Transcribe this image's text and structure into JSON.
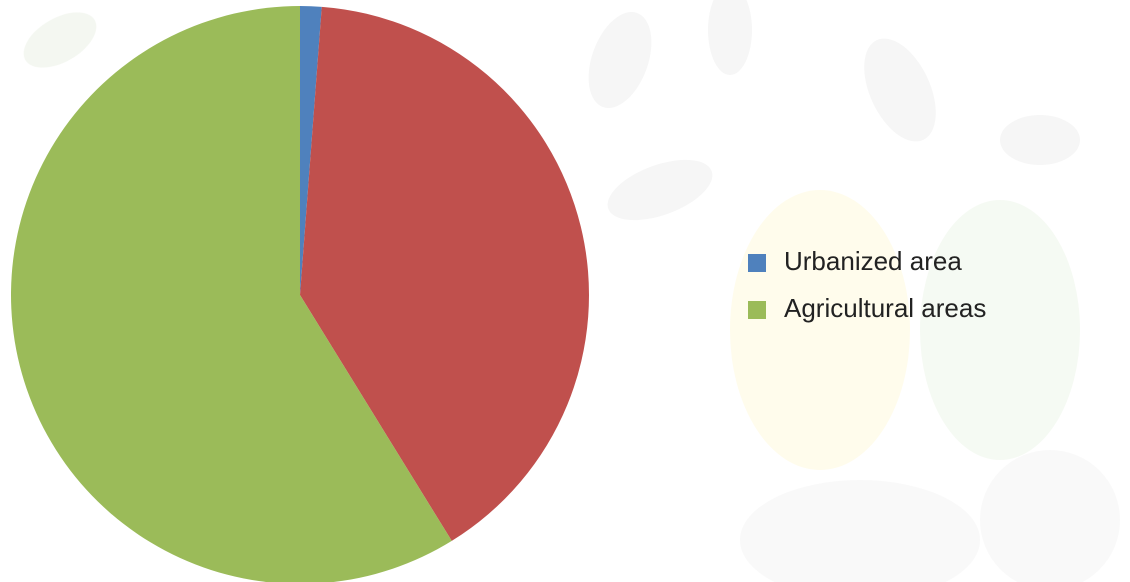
{
  "chart_data": {
    "type": "pie",
    "categories": [
      "Urbanized area",
      null,
      "Agricultural areas"
    ],
    "values": [
      1.2,
      40,
      58.8
    ],
    "colors": [
      "#4f81bd",
      "#c0504d",
      "#9bbb59"
    ],
    "legend": "right"
  }
}
